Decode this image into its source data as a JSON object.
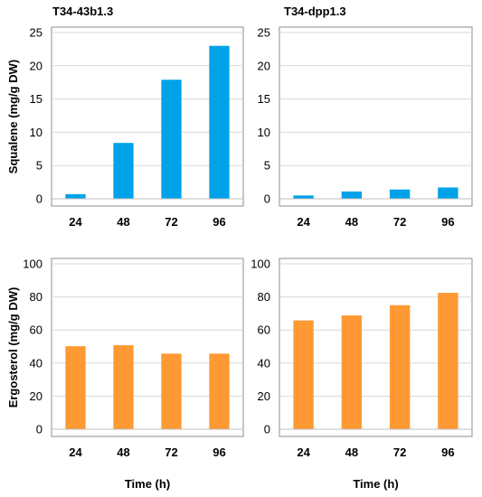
{
  "chart_data": [
    {
      "type": "bar",
      "title": "T34-43b1.3",
      "ylabel": "Squalene (mg/g DW)",
      "xlabel": "",
      "categories": [
        "24",
        "48",
        "72",
        "96"
      ],
      "values": [
        0.7,
        8.4,
        17.9,
        23.0
      ],
      "ylim": [
        0,
        25
      ],
      "yticks": [
        0,
        5,
        10,
        15,
        20,
        25
      ],
      "color": "#00a2e8",
      "grid": true
    },
    {
      "type": "bar",
      "title": "T34-dpp1.3",
      "ylabel": "",
      "xlabel": "",
      "categories": [
        "24",
        "48",
        "72",
        "96"
      ],
      "values": [
        0.5,
        1.1,
        1.4,
        1.7
      ],
      "ylim": [
        0,
        25
      ],
      "yticks": [
        0,
        5,
        10,
        15,
        20,
        25
      ],
      "color": "#00a2e8",
      "grid": true
    },
    {
      "type": "bar",
      "title": "",
      "ylabel": "Ergosterol (mg/g DW)",
      "xlabel": "Time (h)",
      "categories": [
        "24",
        "48",
        "72",
        "96"
      ],
      "values": [
        50.2,
        50.8,
        45.7,
        45.7
      ],
      "ylim": [
        0,
        100
      ],
      "yticks": [
        0,
        20,
        40,
        60,
        80,
        100
      ],
      "color": "#ff9933",
      "grid": true
    },
    {
      "type": "bar",
      "title": "",
      "ylabel": "",
      "xlabel": "Time (h)",
      "categories": [
        "24",
        "48",
        "72",
        "96"
      ],
      "values": [
        65.8,
        68.8,
        75.0,
        82.5
      ],
      "ylim": [
        0,
        100
      ],
      "yticks": [
        0,
        20,
        40,
        60,
        80,
        100
      ],
      "color": "#ff9933",
      "grid": true
    }
  ]
}
